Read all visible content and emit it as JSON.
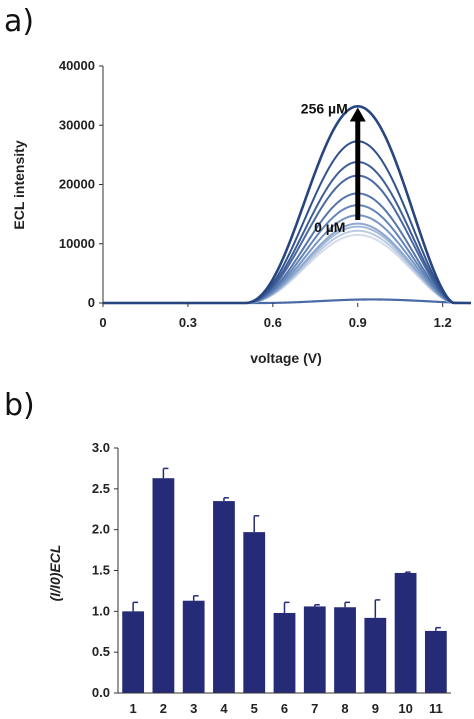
{
  "panels": {
    "a_label": "a)",
    "b_label": "b)"
  },
  "chart_data": [
    {
      "type": "line",
      "xlabel": "voltage (V)",
      "ylabel": "ECL intensity",
      "xlim": [
        0,
        1.3
      ],
      "ylim": [
        0,
        40000
      ],
      "xticks": [
        0,
        0.3,
        0.6,
        0.9,
        1.2
      ],
      "xtick_labels": [
        "0",
        "0.3",
        "0.6",
        "0.9",
        "1.2"
      ],
      "yticks": [
        0,
        10000,
        20000,
        30000,
        40000
      ],
      "ytick_labels": [
        "0",
        "10000",
        "20000",
        "30000",
        "40000"
      ],
      "annotations": {
        "top": "256 µM",
        "bottom": "0 µM"
      },
      "arrow": {
        "x": 0.9,
        "y_start": 14000,
        "y_end": 33000
      },
      "peak_x": 0.9,
      "onset_x": 0.5,
      "end_x": 1.24,
      "series": [
        {
          "peak": 11500,
          "color": "#d4dced"
        },
        {
          "peak": 12200,
          "color": "#bccbe2"
        },
        {
          "peak": 12900,
          "color": "#a5bad9"
        },
        {
          "peak": 13400,
          "color": "#8ea8cf"
        },
        {
          "peak": 14800,
          "color": "#7796c4"
        },
        {
          "peak": 16500,
          "color": "#6485b9"
        },
        {
          "peak": 18500,
          "color": "#5676ad"
        },
        {
          "peak": 21500,
          "color": "#4a69a2"
        },
        {
          "peak": 23800,
          "color": "#3f5e97"
        },
        {
          "peak": 27300,
          "color": "#33528c"
        },
        {
          "peak": 33200,
          "color": "#274680"
        }
      ],
      "baseline_series": {
        "peak": 600,
        "color": "#4a6aa5"
      }
    },
    {
      "type": "bar",
      "ylabel": "(I/I0)ECL",
      "ylim": [
        0,
        3.0
      ],
      "yticks": [
        0,
        0.5,
        1.0,
        1.5,
        2.0,
        2.5,
        3.0
      ],
      "ytick_labels": [
        "0.0",
        "0.5",
        "1.0",
        "1.5",
        "2.0",
        "2.5",
        "3.0"
      ],
      "categories": [
        "1",
        "2",
        "3",
        "4",
        "5",
        "6",
        "7",
        "8",
        "9",
        "10",
        "11"
      ],
      "values": [
        1.0,
        2.63,
        1.13,
        2.35,
        1.97,
        0.98,
        1.06,
        1.05,
        0.92,
        1.47,
        0.76
      ],
      "errors": [
        0.11,
        0.12,
        0.06,
        0.04,
        0.2,
        0.13,
        0.02,
        0.06,
        0.22,
        0.01,
        0.04
      ],
      "bar_color": "#262b78"
    }
  ]
}
